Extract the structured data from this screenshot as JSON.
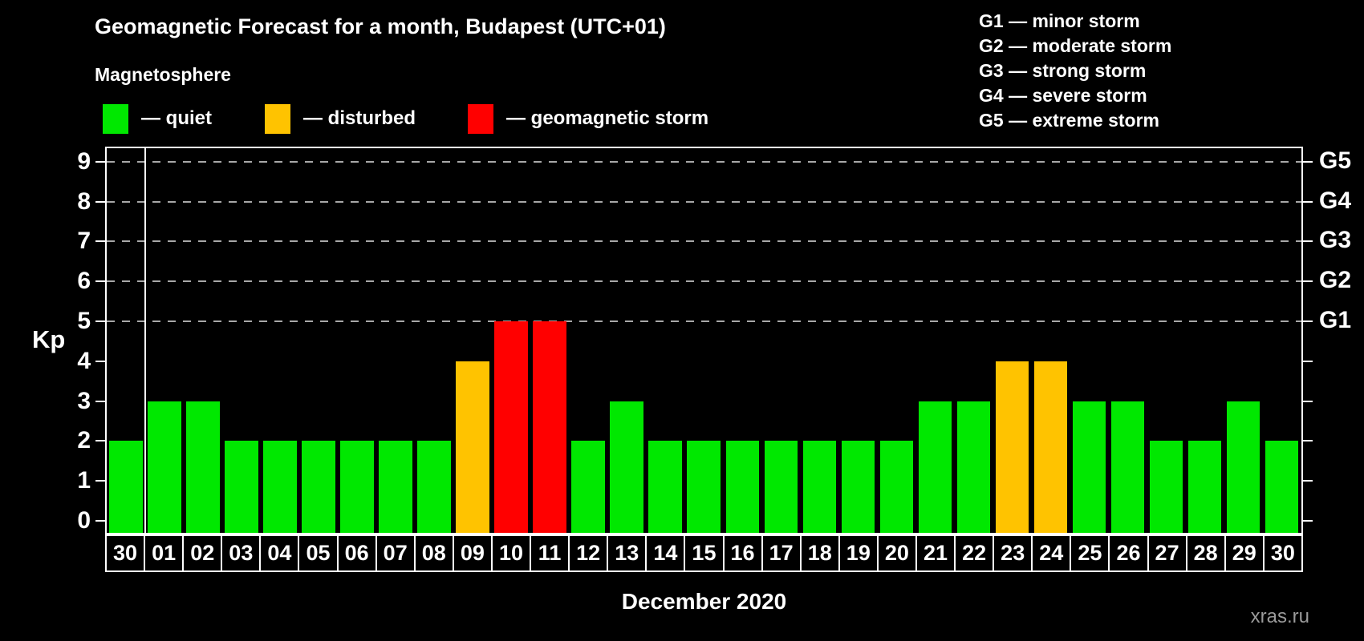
{
  "header": {
    "title": "Geomagnetic Forecast for a month, Budapest (UTC+01)",
    "subtitle": "Magnetosphere"
  },
  "legend": {
    "items": [
      {
        "name": "quiet",
        "label": "— quiet",
        "color": "#00e800"
      },
      {
        "name": "disturbed",
        "label": "— disturbed",
        "color": "#ffc300"
      },
      {
        "name": "storm",
        "label": "— geomagnetic storm",
        "color": "#ff0000"
      }
    ]
  },
  "g_scale_legend": [
    "G1 — minor storm",
    "G2 — moderate storm",
    "G3 — strong storm",
    "G4 — severe storm",
    "G5 — extreme storm"
  ],
  "chart_data": {
    "type": "bar",
    "title": "Geomagnetic Forecast for a month, Budapest (UTC+01)",
    "xlabel": "December 2020",
    "ylabel": "Kp",
    "categories": [
      "30",
      "01",
      "02",
      "03",
      "04",
      "05",
      "06",
      "07",
      "08",
      "09",
      "10",
      "11",
      "12",
      "13",
      "14",
      "15",
      "16",
      "17",
      "18",
      "19",
      "20",
      "21",
      "22",
      "23",
      "24",
      "25",
      "26",
      "27",
      "28",
      "29",
      "30"
    ],
    "values": [
      2,
      3,
      3,
      2,
      2,
      2,
      2,
      2,
      2,
      4,
      5,
      5,
      2,
      3,
      2,
      2,
      2,
      2,
      2,
      2,
      2,
      3,
      3,
      4,
      4,
      3,
      3,
      2,
      2,
      3,
      2
    ],
    "statuses": [
      "quiet",
      "quiet",
      "quiet",
      "quiet",
      "quiet",
      "quiet",
      "quiet",
      "quiet",
      "quiet",
      "disturbed",
      "storm",
      "storm",
      "quiet",
      "quiet",
      "quiet",
      "quiet",
      "quiet",
      "quiet",
      "quiet",
      "quiet",
      "quiet",
      "quiet",
      "quiet",
      "disturbed",
      "disturbed",
      "quiet",
      "quiet",
      "quiet",
      "quiet",
      "quiet",
      "quiet"
    ],
    "status_colors": {
      "quiet": "#00e800",
      "disturbed": "#ffc300",
      "storm": "#ff0000"
    },
    "ylim": [
      0,
      9
    ],
    "yticks": [
      0,
      1,
      2,
      3,
      4,
      5,
      6,
      7,
      8,
      9
    ],
    "gridlines": [
      5,
      6,
      7,
      8,
      9
    ],
    "right_axis_labels": [
      {
        "value": 5,
        "label": "G1"
      },
      {
        "value": 6,
        "label": "G2"
      },
      {
        "value": 7,
        "label": "G3"
      },
      {
        "value": 8,
        "label": "G4"
      },
      {
        "value": 9,
        "label": "G5"
      }
    ],
    "month_separator_after_index": 0,
    "grid": "dashed horizontal lines at Kp 5-9",
    "legend_position": "top"
  },
  "footer": {
    "watermark": "xras.ru"
  }
}
